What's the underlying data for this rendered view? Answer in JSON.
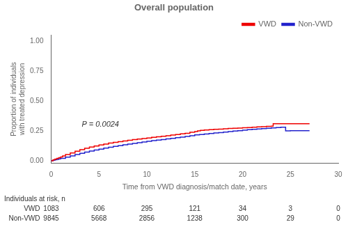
{
  "chart_data": {
    "type": "step",
    "title": "Overall population",
    "xlabel": "Time from VWD diagnosis/match date, years",
    "ylabel": "Proportion of individuals with treated depression",
    "xlim": [
      0,
      30
    ],
    "ylim": [
      -0.02,
      1.05
    ],
    "xticks": [
      0,
      5,
      10,
      15,
      20,
      25,
      30
    ],
    "yticks": [
      {
        "value": 0,
        "label": "0.00"
      },
      0.25,
      {
        "value": 0.5,
        "label": "0.50"
      },
      0.75,
      {
        "value": 1,
        "label": "1.00"
      }
    ],
    "grid": false,
    "legend": "upper right",
    "annotations": [
      {
        "text": "P = 0.0024",
        "x": 3.2,
        "y": 0.285
      }
    ],
    "series": [
      {
        "name": "VWD",
        "color": "#EE0000",
        "x": [
          0.0,
          0.2,
          0.4,
          0.6,
          0.8,
          1.0,
          1.2,
          1.5,
          2.0,
          2.5,
          3.0,
          3.5,
          4.0,
          4.5,
          5.0,
          5.5,
          6.0,
          6.5,
          7.0,
          7.5,
          8.0,
          8.5,
          9.0,
          9.5,
          10.0,
          10.5,
          11.0,
          11.5,
          12.0,
          12.5,
          13.0,
          13.5,
          14.0,
          14.5,
          15.0,
          15.3,
          15.6,
          16.0,
          16.5,
          17.0,
          17.5,
          18.0,
          18.5,
          19.0,
          19.5,
          20.0,
          20.5,
          21.0,
          21.5,
          22.0,
          22.5,
          23.0,
          23.2,
          25.0,
          27.0
        ],
        "values": [
          0.0,
          0.008,
          0.014,
          0.02,
          0.026,
          0.032,
          0.04,
          0.052,
          0.066,
          0.08,
          0.093,
          0.105,
          0.115,
          0.124,
          0.132,
          0.14,
          0.148,
          0.154,
          0.16,
          0.166,
          0.172,
          0.177,
          0.182,
          0.186,
          0.191,
          0.196,
          0.2,
          0.205,
          0.21,
          0.215,
          0.22,
          0.225,
          0.23,
          0.238,
          0.245,
          0.25,
          0.255,
          0.258,
          0.26,
          0.263,
          0.265,
          0.268,
          0.27,
          0.272,
          0.274,
          0.276,
          0.278,
          0.281,
          0.283,
          0.285,
          0.288,
          0.29,
          0.31,
          0.31,
          0.31
        ]
      },
      {
        "name": "Non-VWD",
        "color": "#2222CC",
        "x": [
          0.0,
          0.2,
          0.4,
          0.6,
          0.8,
          1.0,
          1.5,
          2.0,
          2.5,
          3.0,
          3.5,
          4.0,
          4.5,
          5.0,
          5.5,
          6.0,
          6.5,
          7.0,
          7.5,
          8.0,
          8.5,
          9.0,
          9.5,
          10.0,
          10.5,
          11.0,
          11.5,
          12.0,
          12.5,
          13.0,
          13.5,
          14.0,
          14.5,
          15.0,
          15.5,
          16.0,
          16.5,
          17.0,
          17.5,
          18.0,
          18.5,
          19.0,
          19.5,
          20.0,
          20.5,
          21.0,
          21.5,
          22.0,
          22.5,
          23.0,
          23.5,
          24.0,
          24.5,
          25.0,
          27.0
        ],
        "values": [
          0.0,
          0.004,
          0.008,
          0.012,
          0.016,
          0.02,
          0.03,
          0.04,
          0.052,
          0.062,
          0.072,
          0.082,
          0.09,
          0.098,
          0.106,
          0.113,
          0.12,
          0.127,
          0.133,
          0.139,
          0.145,
          0.151,
          0.157,
          0.163,
          0.168,
          0.173,
          0.178,
          0.183,
          0.188,
          0.193,
          0.198,
          0.204,
          0.21,
          0.216,
          0.22,
          0.224,
          0.228,
          0.232,
          0.236,
          0.24,
          0.244,
          0.248,
          0.252,
          0.256,
          0.26,
          0.263,
          0.266,
          0.269,
          0.272,
          0.275,
          0.278,
          0.28,
          0.25,
          0.252,
          0.252
        ]
      }
    ],
    "risk_table": {
      "title": "Individuals at risk, n",
      "x": [
        0,
        5,
        10,
        15,
        20,
        25,
        30
      ],
      "rows": [
        {
          "name": "VWD",
          "values": [
            1083,
            606,
            295,
            121,
            34,
            3,
            0
          ]
        },
        {
          "name": "Non-VWD",
          "values": [
            9845,
            5668,
            2856,
            1238,
            300,
            29,
            0
          ]
        }
      ]
    }
  }
}
